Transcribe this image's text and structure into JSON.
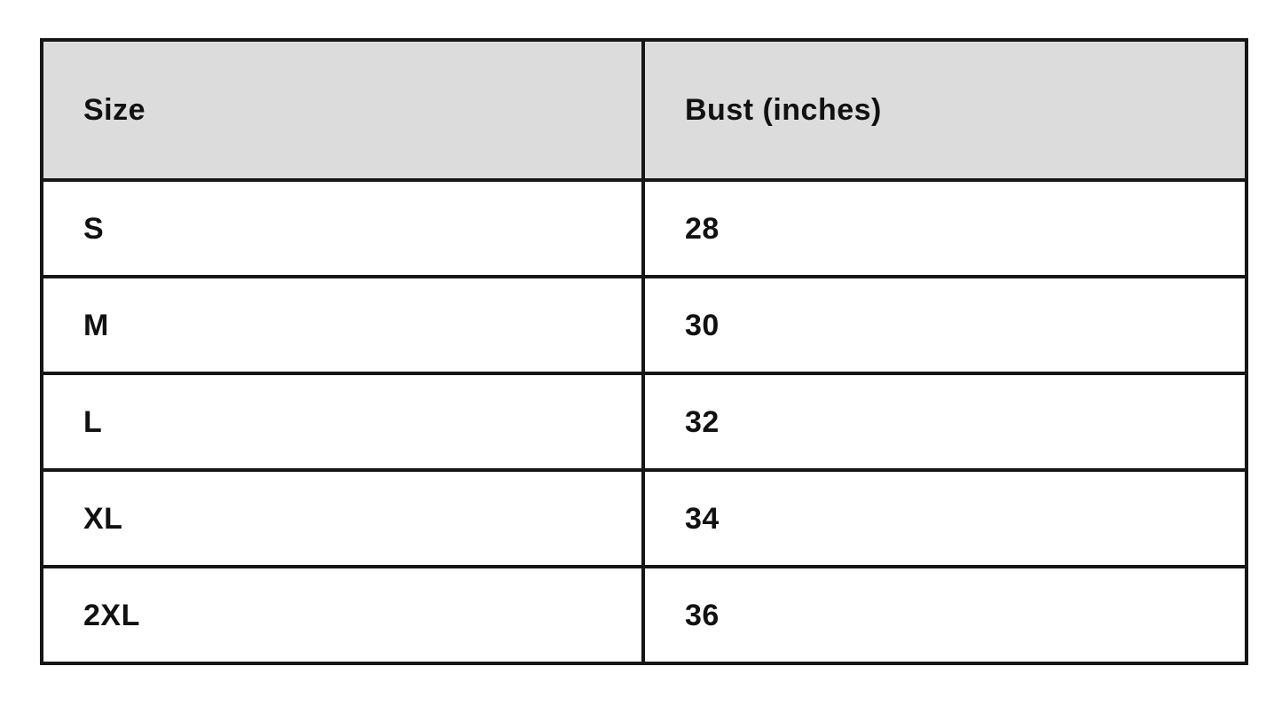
{
  "table": {
    "name": "size-chart",
    "columns": [
      "Size",
      "Bust (inches)"
    ],
    "rows": [
      {
        "size": "S",
        "bust": "28"
      },
      {
        "size": "M",
        "bust": "30"
      },
      {
        "size": "L",
        "bust": "32"
      },
      {
        "size": "XL",
        "bust": "34"
      },
      {
        "size": "2XL",
        "bust": "36"
      }
    ]
  },
  "colors": {
    "header_background": "#dcdcdc",
    "row_background": "#ffffff",
    "border": "#161616",
    "text": "#111111",
    "page_background": "#ffffff"
  }
}
